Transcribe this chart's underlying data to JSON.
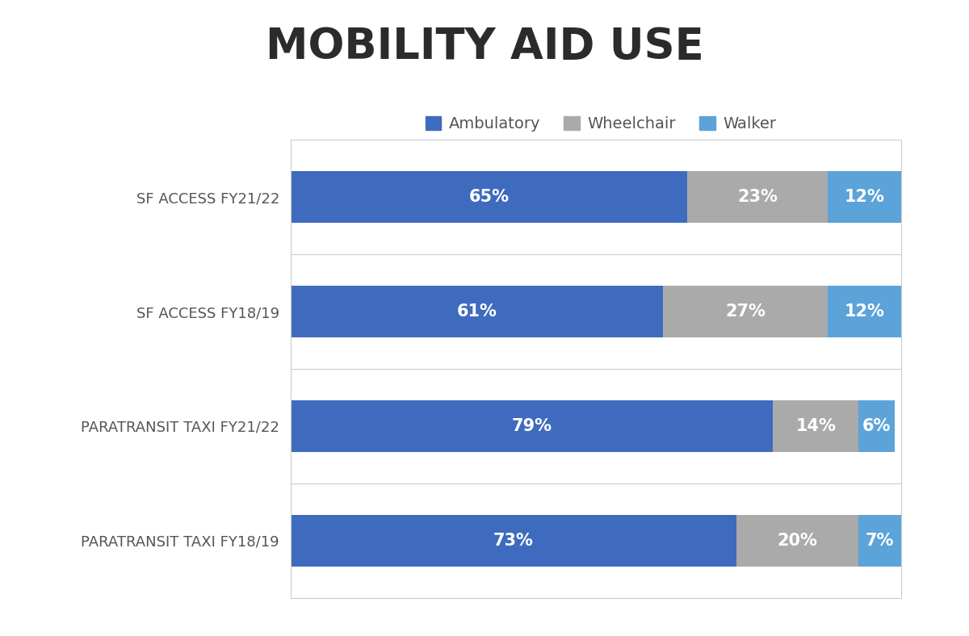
{
  "title": "MOBILITY AID USE",
  "categories": [
    "SF ACCESS FY21/22",
    "SF ACCESS FY18/19",
    "PARATRANSIT TAXI FY21/22",
    "PARATRANSIT TAXI FY18/19"
  ],
  "ambulatory": [
    65,
    61,
    79,
    73
  ],
  "wheelchair": [
    23,
    27,
    14,
    20
  ],
  "walker": [
    12,
    12,
    6,
    7
  ],
  "ambulatory_color": "#3F6BBF",
  "wheelchair_color": "#AAAAAA",
  "walker_color": "#5BA3D9",
  "background_color": "#FFFFFF",
  "bar_area_background": "#FFFFFF",
  "title_fontsize": 38,
  "label_fontsize": 13,
  "bar_label_fontsize": 15,
  "legend_fontsize": 14,
  "bar_height": 0.45,
  "legend_labels": [
    "Ambulatory",
    "Wheelchair",
    "Walker"
  ]
}
